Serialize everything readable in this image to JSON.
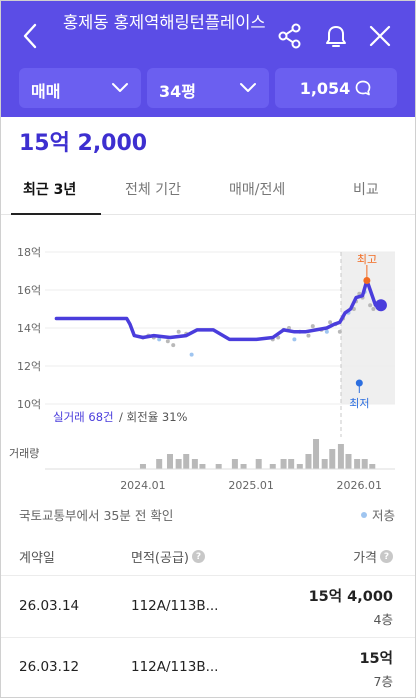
{
  "header": {
    "title": "홍제동 홍제역해링턴플레이스",
    "filters": {
      "deal_type": "매매",
      "size": "34평",
      "comments": "1,054"
    },
    "colors": {
      "brand": "#5b4de6",
      "pill": "#6b5ff0"
    }
  },
  "price": "15억 2,000",
  "tabs": [
    "최근 3년",
    "전체 기간",
    "매매/전세",
    "비교"
  ],
  "chart_data": {
    "type": "line",
    "y_tick_labels": [
      "18억",
      "16억",
      "14억",
      "12억",
      "10억"
    ],
    "y_ticks": [
      18,
      16,
      14,
      12,
      10
    ],
    "ylim": [
      10,
      18
    ],
    "x_tick_labels": [
      "2024.01",
      "2025.01",
      "2026.01"
    ],
    "series": [
      {
        "values_desc": "price trend (억)",
        "x": [
          2023.25,
          2023.6,
          2023.9,
          2023.93,
          2023.97,
          2024.05,
          2024.15,
          2024.3,
          2024.45,
          2024.55,
          2024.7,
          2024.85,
          2024.95,
          2025.1,
          2025.25,
          2025.35,
          2025.45,
          2025.55,
          2025.65,
          2025.75,
          2025.82,
          2025.87,
          2025.92,
          2025.97,
          2026.02,
          2026.08,
          2026.12,
          2026.2,
          2026.25
        ],
        "values": [
          14.5,
          14.5,
          14.5,
          14.2,
          13.6,
          13.5,
          13.6,
          13.5,
          13.6,
          13.9,
          13.9,
          13.4,
          13.4,
          13.4,
          13.5,
          13.9,
          13.8,
          13.8,
          13.9,
          14.0,
          14.2,
          14.3,
          14.8,
          15.0,
          15.6,
          15.7,
          16.5,
          15.2,
          15.2
        ]
      }
    ],
    "transactions": [
      [
        2024.05,
        13.5
      ],
      [
        2024.1,
        13.6
      ],
      [
        2024.15,
        13.5
      ],
      [
        2024.2,
        13.4
      ],
      [
        2024.28,
        13.3
      ],
      [
        2024.33,
        13.1
      ],
      [
        2024.38,
        13.8
      ],
      [
        2024.45,
        13.7
      ],
      [
        2024.5,
        12.6
      ],
      [
        2025.25,
        13.4
      ],
      [
        2025.3,
        13.5
      ],
      [
        2025.35,
        13.9
      ],
      [
        2025.4,
        14.0
      ],
      [
        2025.45,
        13.4
      ],
      [
        2025.5,
        13.8
      ],
      [
        2025.58,
        13.6
      ],
      [
        2025.62,
        14.1
      ],
      [
        2025.7,
        13.9
      ],
      [
        2025.75,
        13.8
      ],
      [
        2025.78,
        14.3
      ],
      [
        2025.83,
        14.2
      ],
      [
        2025.87,
        13.8
      ],
      [
        2025.9,
        14.5
      ],
      [
        2025.95,
        14.8
      ],
      [
        2026.0,
        15.0
      ],
      [
        2026.02,
        15.4
      ],
      [
        2026.05,
        15.8
      ],
      [
        2026.08,
        15.6
      ],
      [
        2026.1,
        15.9
      ],
      [
        2026.15,
        15.2
      ],
      [
        2026.18,
        15.0
      ]
    ],
    "high": {
      "label": "최고",
      "x": 2026.12,
      "y": 16.5
    },
    "low": {
      "label": "최저",
      "x": 2026.05,
      "y": 11.0
    },
    "current": {
      "x": 2026.25,
      "y": 15.2
    },
    "stats_count": "실거래 68건",
    "stats_turnover": "/ 회전율 31%",
    "volume_label": "거래량",
    "volume": [
      [
        2024.05,
        1
      ],
      [
        2024.2,
        2
      ],
      [
        2024.3,
        3
      ],
      [
        2024.38,
        2
      ],
      [
        2024.45,
        3
      ],
      [
        2024.53,
        2
      ],
      [
        2024.6,
        1
      ],
      [
        2024.75,
        1
      ],
      [
        2024.9,
        2
      ],
      [
        2024.98,
        1
      ],
      [
        2025.12,
        2
      ],
      [
        2025.25,
        1
      ],
      [
        2025.35,
        2
      ],
      [
        2025.42,
        2
      ],
      [
        2025.5,
        1
      ],
      [
        2025.58,
        3
      ],
      [
        2025.65,
        6
      ],
      [
        2025.73,
        2
      ],
      [
        2025.8,
        4
      ],
      [
        2025.88,
        5
      ],
      [
        2025.95,
        3
      ],
      [
        2026.03,
        2
      ],
      [
        2026.1,
        2
      ],
      [
        2026.17,
        1
      ]
    ],
    "colors": {
      "line": "#4a3ddc",
      "high": "#f26b22",
      "low": "#2d6fe0",
      "dot": "#b9b9b9",
      "dot_blue": "#9fc5f0",
      "bar": "#b9b9b9"
    }
  },
  "source": "국토교통부에서 35분 전 확인",
  "legend": "저층",
  "table": {
    "headers": {
      "date": "계약일",
      "area": "면적(공급)",
      "price": "가격",
      "help": "?"
    },
    "rows": [
      {
        "date": "26.03.14",
        "area": "112A/113B...",
        "price": "15억 4,000",
        "floor": "4층"
      },
      {
        "date": "26.03.12",
        "area": "112A/113B...",
        "price": "15억",
        "floor": "7층"
      }
    ]
  }
}
